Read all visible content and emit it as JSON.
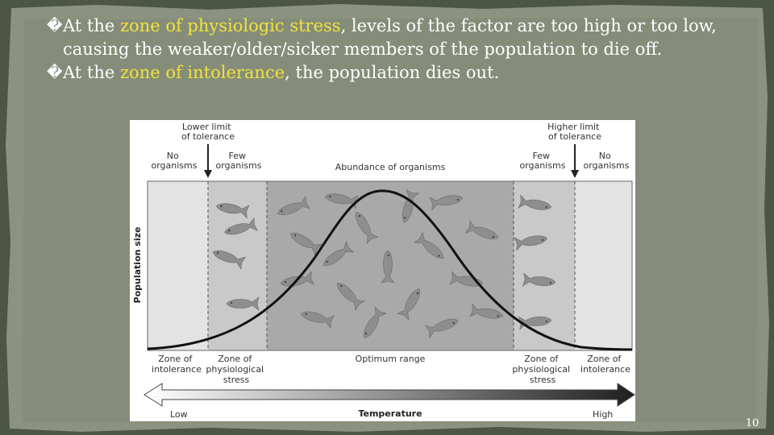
{
  "slide": {
    "bullets": [
      {
        "mark": "�",
        "before": "At the ",
        "highlight": "zone of physiologic stress",
        "after": ", levels of the factor are too high or too low, causing the weaker/older/sicker members of the population to die off."
      },
      {
        "mark": "�",
        "before": "At the ",
        "highlight": "zone of intolerance",
        "after": ", the population dies out."
      }
    ],
    "page_number": "10",
    "colors": {
      "background": "#4d5545",
      "paper": "#8b9380",
      "text": "#ffffff",
      "highlight": "#f2e33a"
    }
  },
  "figure": {
    "y_axis_label": "Population size",
    "x_axis_label": "Temperature",
    "x_low": "Low",
    "x_high": "High",
    "limits": {
      "lower": [
        "Lower limit",
        "of tolerance"
      ],
      "higher": [
        "Higher limit",
        "of tolerance"
      ]
    },
    "top_labels": {
      "no_left": [
        "No",
        "organisms"
      ],
      "few_left": [
        "Few",
        "organisms"
      ],
      "abundance": "Abundance of organisms",
      "few_right": [
        "Few",
        "organisms"
      ],
      "no_right": [
        "No",
        "organisms"
      ]
    },
    "zone_labels": {
      "intolerance_left": [
        "Zone of",
        "intolerance"
      ],
      "stress_left": [
        "Zone of",
        "physiological",
        "stress"
      ],
      "optimum": "Optimum range",
      "stress_right": [
        "Zone of",
        "physiological",
        "stress"
      ],
      "intolerance_right": [
        "Zone of",
        "intolerance"
      ]
    },
    "icons": {
      "fish": "fish-icon",
      "arrow": "down-arrow-icon"
    },
    "colors": {
      "intolerance_zone": "#e3e3e3",
      "stress_zone": "#c9c9c9",
      "optimum_zone": "#a9a9a9",
      "curve": "#111111",
      "fish": "#8e8e8e"
    }
  }
}
